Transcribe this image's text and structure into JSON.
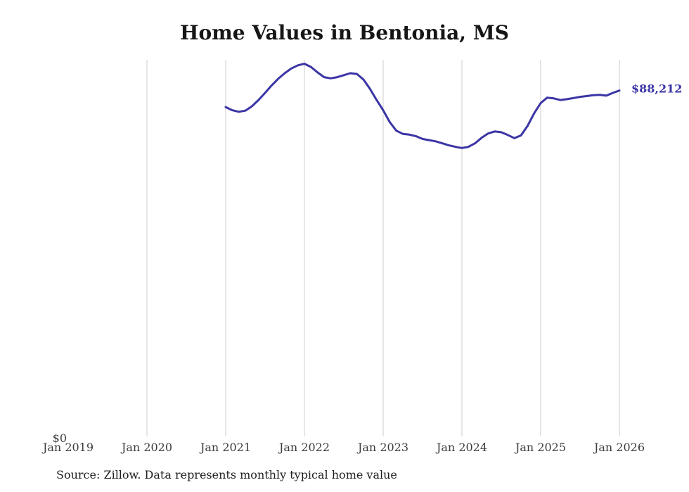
{
  "chart": {
    "title": "Home Values in Bentonia, MS",
    "source": "Source: Zillow. Data represents monthly typical home value"
  },
  "chart_data": {
    "type": "line",
    "title": "Home Values in Bentonia, MS",
    "x_tick_labels": [
      "Jan 2019",
      "Jan 2020",
      "Jan 2021",
      "Jan 2022",
      "Jan 2023",
      "Jan 2024",
      "Jan 2025",
      "Jan 2026"
    ],
    "months_per_tick": 12,
    "ylim": [
      0,
      96000
    ],
    "y_zero_label": "$0",
    "grid": "vertical",
    "legend": "none",
    "line_color": "#3b35a5",
    "series": [
      {
        "name": "Monthly typical home value",
        "start": "Jan 2021",
        "start_month_index": 24,
        "values": [
          84000,
          83200,
          82800,
          83100,
          84200,
          85800,
          87600,
          89500,
          91200,
          92600,
          93800,
          94600,
          95000,
          94200,
          92800,
          91600,
          91300,
          91600,
          92100,
          92600,
          92400,
          91000,
          88600,
          85800,
          83200,
          80200,
          78000,
          77200,
          77000,
          76600,
          75900,
          75600,
          75300,
          74800,
          74300,
          73900,
          73600,
          73900,
          74800,
          76200,
          77300,
          77800,
          77600,
          76900,
          76100,
          76800,
          79200,
          82400,
          85000,
          86400,
          86200,
          85800,
          86000,
          86300,
          86600,
          86800,
          87000,
          87100,
          86900,
          87600,
          88212
        ]
      }
    ],
    "last_value": 88212,
    "last_value_label": "$88,212"
  }
}
